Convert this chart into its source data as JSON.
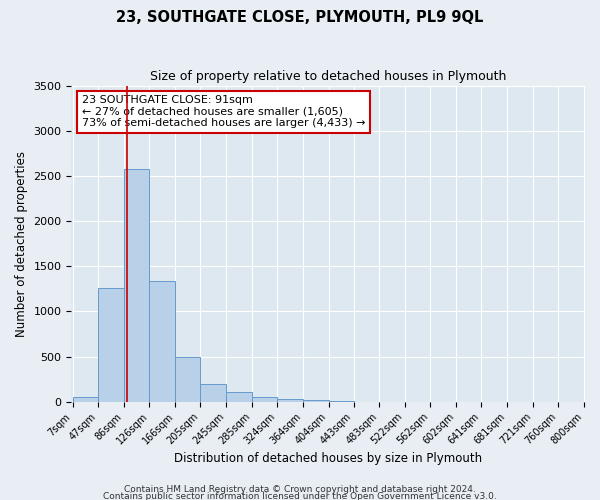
{
  "title": "23, SOUTHGATE CLOSE, PLYMOUTH, PL9 9QL",
  "subtitle": "Size of property relative to detached houses in Plymouth",
  "xlabel": "Distribution of detached houses by size in Plymouth",
  "ylabel": "Number of detached properties",
  "bar_color": "#b8d0e8",
  "bar_edge_color": "#6699cc",
  "bg_color": "#dde8f0",
  "grid_color": "#ffffff",
  "fig_bg_color": "#e8eef4",
  "vline_x": 91,
  "vline_color": "#cc0000",
  "annotation_title": "23 SOUTHGATE CLOSE: 91sqm",
  "annotation_line1": "← 27% of detached houses are smaller (1,605)",
  "annotation_line2": "73% of semi-detached houses are larger (4,433) →",
  "annotation_box_color": "#cc0000",
  "bin_edges": [
    7,
    47,
    86,
    126,
    166,
    205,
    245,
    285,
    324,
    364,
    404,
    443,
    483,
    522,
    562,
    602,
    641,
    681,
    721,
    760,
    800
  ],
  "bin_counts": [
    50,
    1255,
    2580,
    1340,
    500,
    200,
    110,
    55,
    30,
    15,
    5,
    2,
    1,
    0,
    0,
    0,
    0,
    0,
    0,
    0
  ],
  "ylim": [
    0,
    3500
  ],
  "yticks": [
    0,
    500,
    1000,
    1500,
    2000,
    2500,
    3000,
    3500
  ],
  "footer1": "Contains HM Land Registry data © Crown copyright and database right 2024.",
  "footer2": "Contains public sector information licensed under the Open Government Licence v3.0."
}
